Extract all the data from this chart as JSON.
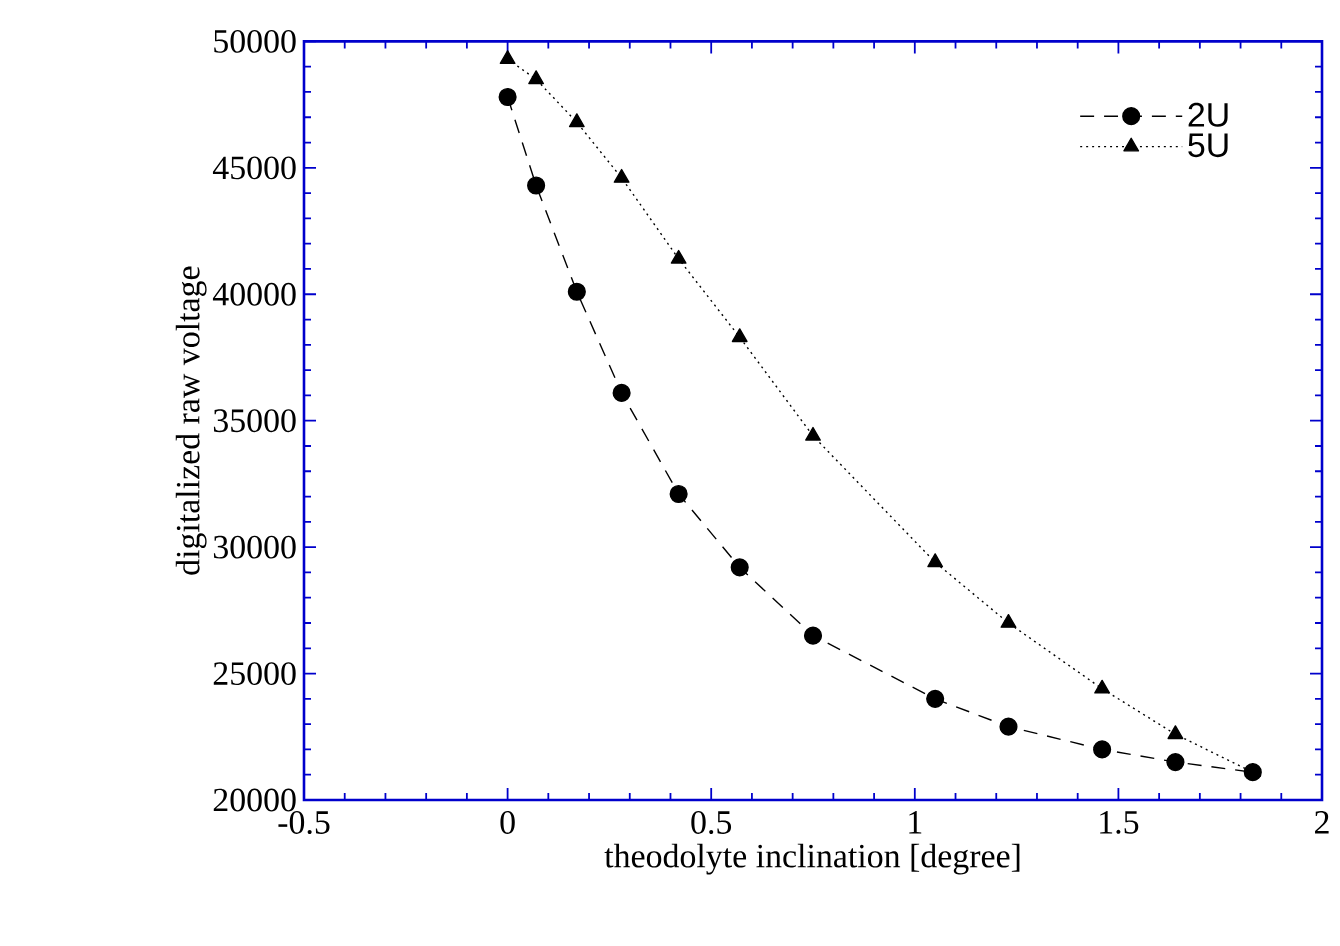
{
  "chart_data": {
    "type": "line",
    "xlabel": "theodolyte inclination [degree]",
    "ylabel": "digitalized raw voltage",
    "xlim": [
      -0.5,
      2
    ],
    "xticks": [
      {
        "value": -0.5,
        "label": "-0.5"
      },
      0,
      0.5,
      1,
      1.5,
      2
    ],
    "ylim": [
      20000,
      50000
    ],
    "yticks": [
      20000,
      25000,
      30000,
      35000,
      40000,
      45000,
      50000
    ],
    "legend": "top right",
    "grid": false,
    "series": [
      {
        "name": "2U",
        "color": "#000000",
        "marker": "circle",
        "line_style": "dashed",
        "x": [
          0,
          0.07,
          0.17,
          0.28,
          0.42,
          0.57,
          0.75,
          1.05,
          1.23,
          1.46,
          1.64,
          1.83
        ],
        "values": [
          47800,
          44300,
          40100,
          36100,
          32100,
          29200,
          26500,
          24000,
          22900,
          22000,
          21500,
          21100
        ]
      },
      {
        "name": "5U",
        "color": "#000000",
        "marker": "triangle",
        "line_style": "dotted",
        "x": [
          0,
          0.07,
          0.17,
          0.28,
          0.42,
          0.57,
          0.75,
          1.05,
          1.23,
          1.46,
          1.64,
          1.83
        ],
        "values": [
          49300,
          48500,
          46800,
          44600,
          41400,
          38300,
          34400,
          29400,
          27000,
          24400,
          22600,
          21100
        ]
      }
    ]
  }
}
